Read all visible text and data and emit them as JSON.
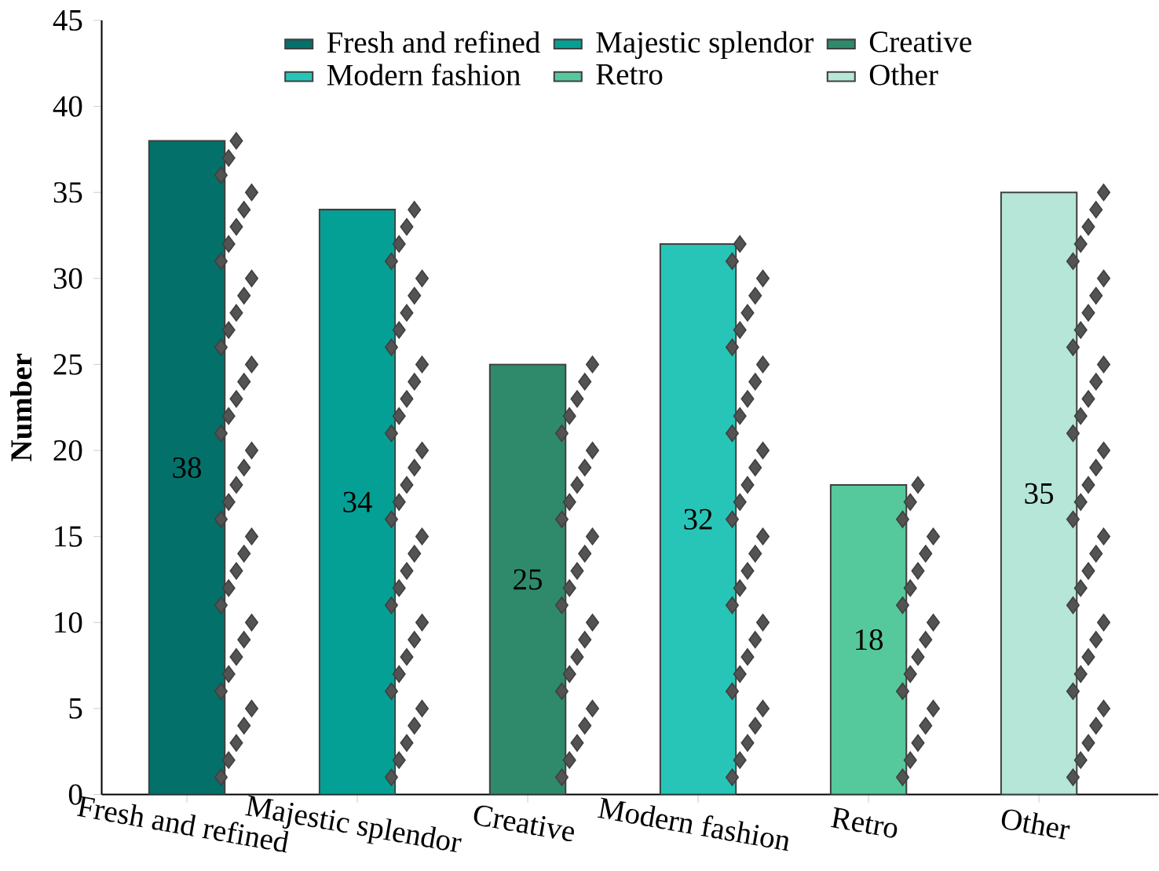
{
  "chart_data": {
    "type": "bar",
    "ylabel": "Number",
    "categories": [
      "Fresh and refined",
      "Majestic splendor",
      "Creative",
      "Modern fashion",
      "Retro",
      "Other"
    ],
    "ylim": [
      0,
      45
    ],
    "yticks": [
      0,
      5,
      10,
      15,
      20,
      25,
      30,
      35,
      40,
      45
    ],
    "grid": false,
    "legend": "top",
    "series": [
      {
        "name": "Fresh and refined",
        "color": "#03716a",
        "values": [
          38,
          null,
          null,
          null,
          null,
          null
        ],
        "value_labels": [
          "38",
          null,
          null,
          null,
          null,
          null
        ]
      },
      {
        "name": "Majestic splendor",
        "color": "#05a095",
        "values": [
          null,
          34,
          null,
          null,
          null,
          null
        ],
        "value_labels": [
          null,
          "34",
          null,
          null,
          null,
          null
        ]
      },
      {
        "name": "Creative",
        "color": "#2e8a6b",
        "values": [
          null,
          null,
          25,
          null,
          null,
          null
        ],
        "value_labels": [
          null,
          null,
          "25",
          null,
          null,
          null
        ]
      },
      {
        "name": "Modern fashion",
        "color": "#27c5b7",
        "values": [
          null,
          null,
          null,
          32,
          null,
          null
        ],
        "value_labels": [
          null,
          null,
          null,
          "32",
          null,
          null
        ]
      },
      {
        "name": "Retro",
        "color": "#55c99c",
        "values": [
          null,
          null,
          null,
          null,
          18,
          null
        ],
        "value_labels": [
          null,
          null,
          null,
          null,
          "18",
          null
        ]
      },
      {
        "name": "Other",
        "color": "#b5e6d7",
        "values": [
          null,
          null,
          null,
          null,
          null,
          35
        ],
        "value_labels": [
          null,
          null,
          null,
          null,
          null,
          "35"
        ]
      },
      {
        "type": "scatter",
        "marker": "diamond",
        "color": "#404040",
        "x": [
          "Fresh and refined",
          "Fresh and refined",
          "Fresh and refined",
          "Fresh and refined",
          "Fresh and refined",
          "Fresh and refined",
          "Fresh and refined",
          "Fresh and refined",
          "Fresh and refined",
          "Fresh and refined",
          "Fresh and refined",
          "Fresh and refined",
          "Fresh and refined",
          "Fresh and refined",
          "Fresh and refined",
          "Fresh and refined",
          "Fresh and refined",
          "Fresh and refined",
          "Fresh and refined",
          "Fresh and refined",
          "Fresh and refined",
          "Fresh and refined",
          "Fresh and refined",
          "Fresh and refined",
          "Fresh and refined",
          "Fresh and refined",
          "Fresh and refined",
          "Fresh and refined",
          "Fresh and refined",
          "Fresh and refined",
          "Fresh and refined",
          "Fresh and refined",
          "Fresh and refined",
          "Fresh and refined",
          "Fresh and refined",
          "Fresh and refined",
          "Fresh and refined",
          "Fresh and refined"
        ],
        "values": [
          1,
          2,
          3,
          4,
          5,
          6,
          7,
          8,
          9,
          10,
          11,
          12,
          13,
          14,
          15,
          16,
          17,
          18,
          19,
          20,
          21,
          22,
          23,
          24,
          25,
          26,
          27,
          28,
          29,
          30,
          31,
          32,
          33,
          34,
          35,
          36,
          37,
          38
        ]
      },
      {
        "type": "scatter",
        "marker": "diamond",
        "color": "#404040",
        "x": [
          "Majestic splendor",
          "Majestic splendor",
          "Majestic splendor",
          "Majestic splendor",
          "Majestic splendor",
          "Majestic splendor",
          "Majestic splendor",
          "Majestic splendor",
          "Majestic splendor",
          "Majestic splendor",
          "Majestic splendor",
          "Majestic splendor",
          "Majestic splendor",
          "Majestic splendor",
          "Majestic splendor",
          "Majestic splendor",
          "Majestic splendor",
          "Majestic splendor",
          "Majestic splendor",
          "Majestic splendor",
          "Majestic splendor",
          "Majestic splendor",
          "Majestic splendor",
          "Majestic splendor",
          "Majestic splendor",
          "Majestic splendor",
          "Majestic splendor",
          "Majestic splendor",
          "Majestic splendor",
          "Majestic splendor",
          "Majestic splendor",
          "Majestic splendor",
          "Majestic splendor",
          "Majestic splendor"
        ],
        "values": [
          1,
          2,
          3,
          4,
          5,
          6,
          7,
          8,
          9,
          10,
          11,
          12,
          13,
          14,
          15,
          16,
          17,
          18,
          19,
          20,
          21,
          22,
          23,
          24,
          25,
          26,
          27,
          28,
          29,
          30,
          31,
          32,
          33,
          34
        ]
      },
      {
        "type": "scatter",
        "marker": "diamond",
        "color": "#404040",
        "x": [
          "Creative",
          "Creative",
          "Creative",
          "Creative",
          "Creative",
          "Creative",
          "Creative",
          "Creative",
          "Creative",
          "Creative",
          "Creative",
          "Creative",
          "Creative",
          "Creative",
          "Creative",
          "Creative",
          "Creative",
          "Creative",
          "Creative",
          "Creative",
          "Creative",
          "Creative",
          "Creative",
          "Creative",
          "Creative"
        ],
        "values": [
          1,
          2,
          3,
          4,
          5,
          6,
          7,
          8,
          9,
          10,
          11,
          12,
          13,
          14,
          15,
          16,
          17,
          18,
          19,
          20,
          21,
          22,
          23,
          24,
          25
        ]
      },
      {
        "type": "scatter",
        "marker": "diamond",
        "color": "#404040",
        "x": [
          "Modern fashion",
          "Modern fashion",
          "Modern fashion",
          "Modern fashion",
          "Modern fashion",
          "Modern fashion",
          "Modern fashion",
          "Modern fashion",
          "Modern fashion",
          "Modern fashion",
          "Modern fashion",
          "Modern fashion",
          "Modern fashion",
          "Modern fashion",
          "Modern fashion",
          "Modern fashion",
          "Modern fashion",
          "Modern fashion",
          "Modern fashion",
          "Modern fashion",
          "Modern fashion",
          "Modern fashion",
          "Modern fashion",
          "Modern fashion",
          "Modern fashion",
          "Modern fashion",
          "Modern fashion",
          "Modern fashion",
          "Modern fashion",
          "Modern fashion",
          "Modern fashion",
          "Modern fashion"
        ],
        "values": [
          1,
          2,
          3,
          4,
          5,
          6,
          7,
          8,
          9,
          10,
          11,
          12,
          13,
          14,
          15,
          16,
          17,
          18,
          19,
          20,
          21,
          22,
          23,
          24,
          25,
          26,
          27,
          28,
          29,
          30,
          31,
          32
        ]
      },
      {
        "type": "scatter",
        "marker": "diamond",
        "color": "#404040",
        "x": [
          "Retro",
          "Retro",
          "Retro",
          "Retro",
          "Retro",
          "Retro",
          "Retro",
          "Retro",
          "Retro",
          "Retro",
          "Retro",
          "Retro",
          "Retro",
          "Retro",
          "Retro",
          "Retro",
          "Retro",
          "Retro"
        ],
        "values": [
          1,
          2,
          3,
          4,
          5,
          6,
          7,
          8,
          9,
          10,
          11,
          12,
          13,
          14,
          15,
          16,
          17,
          18
        ]
      },
      {
        "type": "scatter",
        "marker": "diamond",
        "color": "#404040",
        "x": [
          "Other",
          "Other",
          "Other",
          "Other",
          "Other",
          "Other",
          "Other",
          "Other",
          "Other",
          "Other",
          "Other",
          "Other",
          "Other",
          "Other",
          "Other",
          "Other",
          "Other",
          "Other",
          "Other",
          "Other",
          "Other",
          "Other",
          "Other",
          "Other",
          "Other",
          "Other",
          "Other",
          "Other",
          "Other",
          "Other",
          "Other",
          "Other",
          "Other",
          "Other",
          "Other"
        ],
        "values": [
          1,
          2,
          3,
          4,
          5,
          6,
          7,
          8,
          9,
          10,
          11,
          12,
          13,
          14,
          15,
          16,
          17,
          18,
          19,
          20,
          21,
          22,
          23,
          24,
          25,
          26,
          27,
          28,
          29,
          30,
          31,
          32,
          33,
          34,
          35
        ]
      }
    ]
  }
}
